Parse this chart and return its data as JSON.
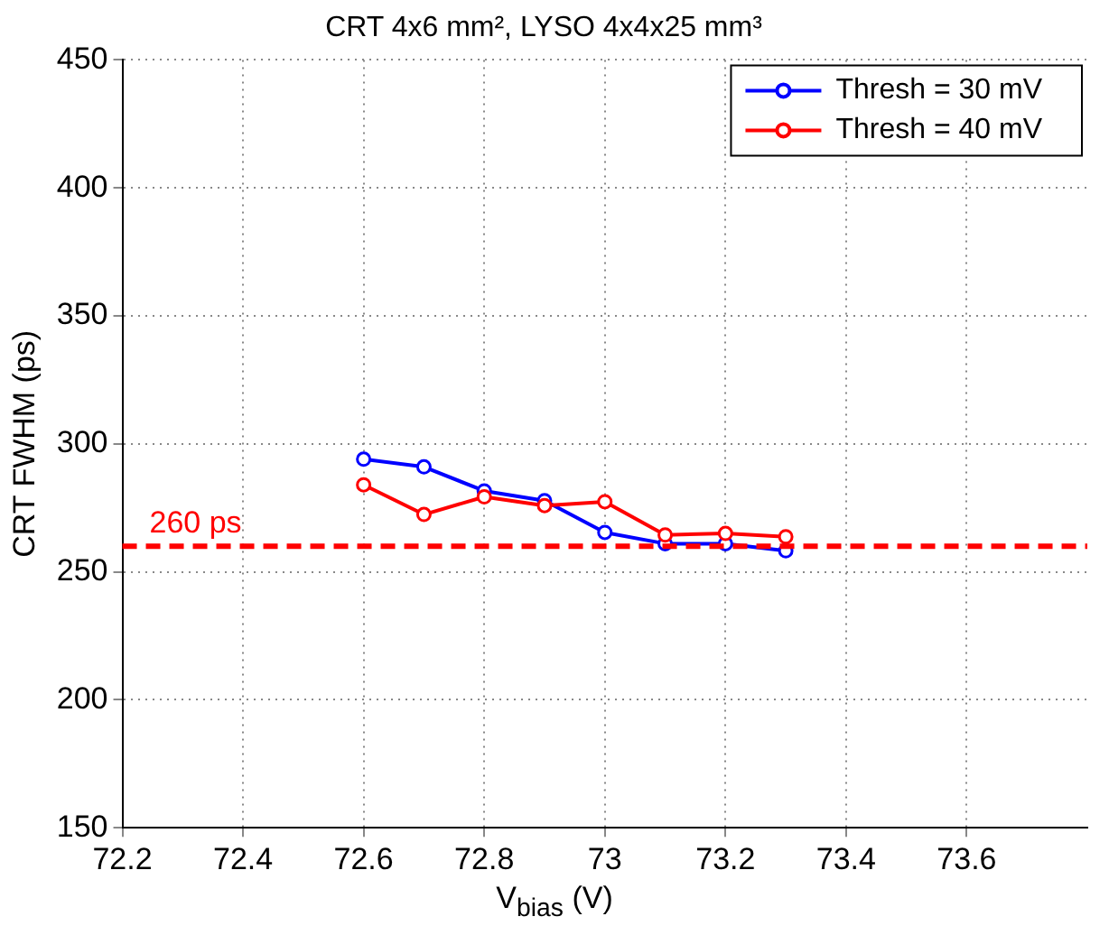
{
  "chart_data": {
    "type": "line",
    "title": "CRT 4x6 mm², LYSO 4x4x25 mm³",
    "xlabel": "V$_{bias}$ (V)",
    "ylabel": "CRT FWHM (ps)",
    "x": [
      72.6,
      72.7,
      72.8,
      72.9,
      73.0,
      73.1,
      73.2,
      73.3
    ],
    "series": [
      {
        "name": "Thresh = 30 mV",
        "color": "#0000ff",
        "values": [
          294,
          291,
          281.6,
          277.8,
          265.4,
          261,
          261,
          258.2
        ]
      },
      {
        "name": "Thresh = 40 mV",
        "color": "#ff0000",
        "values": [
          284,
          272.4,
          279.3,
          275.9,
          277.4,
          264.4,
          265,
          263.7
        ]
      }
    ],
    "xlim": [
      72.2,
      73.8
    ],
    "xticks": [
      72.2,
      72.4,
      72.6,
      72.8,
      73,
      73.2,
      73.4,
      73.6
    ],
    "ylim": [
      150,
      450
    ],
    "yticks": [
      150,
      200,
      250,
      300,
      350,
      400,
      450
    ],
    "ref_lines": [
      {
        "axis": "y",
        "value": 260,
        "label": "260 ps",
        "color": "#ff0000",
        "line_style": "dashed"
      }
    ],
    "grid": true,
    "legend": "top right",
    "marker": "circle",
    "line_style": "solid"
  }
}
